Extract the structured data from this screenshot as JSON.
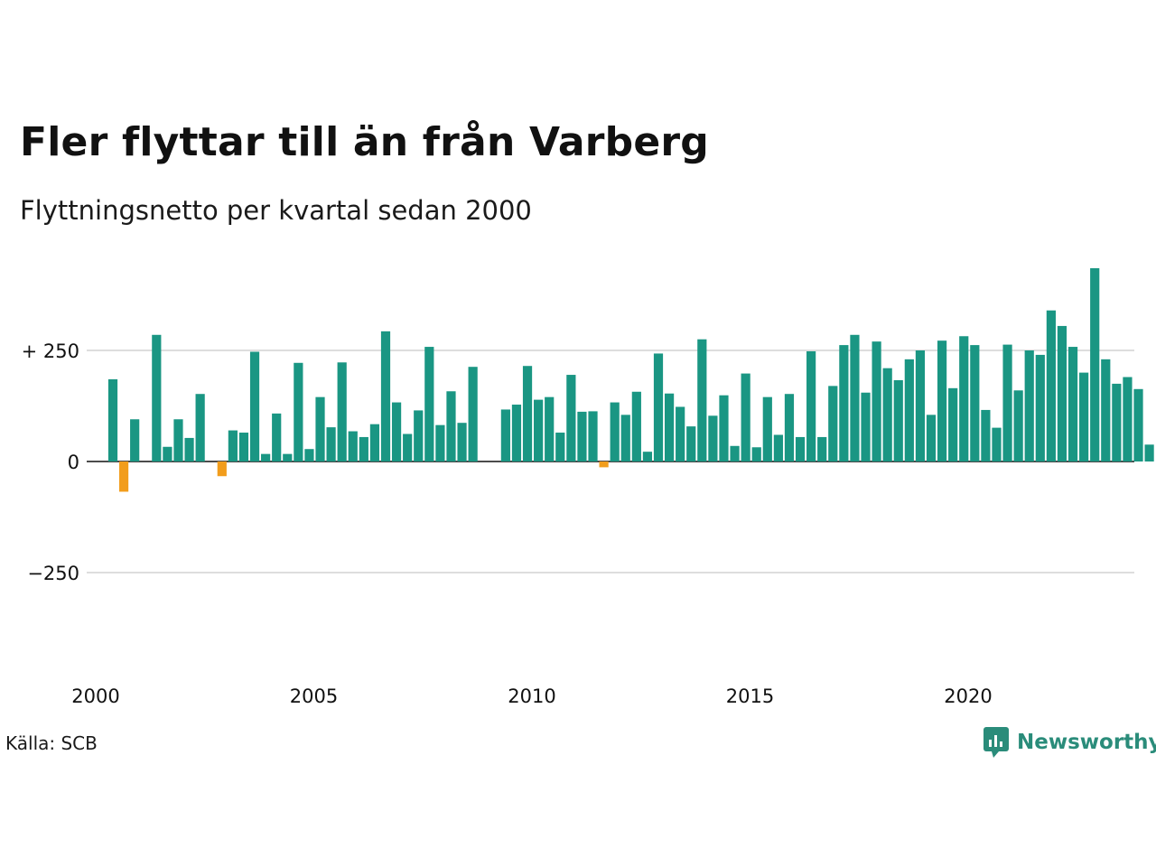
{
  "title": "Fler flyttar till än från Varberg",
  "subtitle": "Flyttningsnetto per kvartal sedan 2000",
  "source": "Källa: SCB",
  "brand": {
    "name": "Newsworthy",
    "color": "#2a8c7a",
    "icon": "newsworthy-logo-icon"
  },
  "colors": {
    "positive": "#1a9683",
    "negative": "#f29d1c",
    "grid": "#dddddd",
    "zero": "#111111"
  },
  "chart_data": {
    "type": "bar",
    "title": "",
    "xlabel": "",
    "ylabel": "",
    "ylim": [
      -450,
      450
    ],
    "y_ticks": [
      {
        "value": 250,
        "label": "+ 250"
      },
      {
        "value": 0,
        "label": "0"
      },
      {
        "value": -250,
        "label": "−250"
      }
    ],
    "x_ticks": [
      "2000",
      "2005",
      "2010",
      "2015",
      "2020"
    ],
    "grid": true,
    "legend": "none",
    "categories": [
      "2000 K1",
      "2000 K2",
      "2000 K3",
      "2000 K4",
      "2001 K1",
      "2001 K2",
      "2001 K3",
      "2001 K4",
      "2002 K1",
      "2002 K2",
      "2002 K3",
      "2002 K4",
      "2003 K1",
      "2003 K2",
      "2003 K3",
      "2003 K4",
      "2004 K1",
      "2004 K2",
      "2004 K3",
      "2004 K4",
      "2005 K1",
      "2005 K2",
      "2005 K3",
      "2005 K4",
      "2006 K1",
      "2006 K2",
      "2006 K3",
      "2006 K4",
      "2007 K1",
      "2007 K2",
      "2007 K3",
      "2007 K4",
      "2008 K1",
      "2008 K2",
      "2008 K3",
      "2008 K4",
      "2009 K1",
      "2009 K2",
      "2009 K3",
      "2009 K4",
      "2010 K1",
      "2010 K2",
      "2010 K3",
      "2010 K4",
      "2011 K1",
      "2011 K2",
      "2011 K3",
      "2011 K4",
      "2012 K1",
      "2012 K2",
      "2012 K3",
      "2012 K4",
      "2013 K1",
      "2013 K2",
      "2013 K3",
      "2013 K4",
      "2014 K1",
      "2014 K2",
      "2014 K3",
      "2014 K4",
      "2015 K1",
      "2015 K2",
      "2015 K3",
      "2015 K4",
      "2016 K1",
      "2016 K2",
      "2016 K3",
      "2016 K4",
      "2017 K1",
      "2017 K2",
      "2017 K3",
      "2017 K4",
      "2018 K1",
      "2018 K2",
      "2018 K3",
      "2018 K4",
      "2019 K1",
      "2019 K2",
      "2019 K3",
      "2019 K4",
      "2020 K1",
      "2020 K2",
      "2020 K3",
      "2020 K4",
      "2021 K1",
      "2021 K2",
      "2021 K3",
      "2021 K4",
      "2022 K1",
      "2022 K2",
      "2022 K3",
      "2022 K4",
      "2023 K1",
      "2023 K2",
      "2023 K3",
      "2023 K4"
    ],
    "values": [
      185,
      -68,
      95,
      0,
      285,
      33,
      95,
      53,
      152,
      0,
      -33,
      70,
      65,
      247,
      17,
      108,
      17,
      222,
      28,
      145,
      77,
      223,
      68,
      55,
      84,
      293,
      133,
      62,
      115,
      258,
      82,
      158,
      87,
      213,
      0,
      0,
      117,
      128,
      215,
      139,
      145,
      65,
      195,
      112,
      113,
      -13,
      133,
      105,
      157,
      22,
      243,
      153,
      123,
      79,
      275,
      103,
      149,
      35,
      198,
      32,
      145,
      60,
      152,
      55,
      248,
      55,
      170,
      262,
      285,
      155,
      270,
      210,
      183,
      230,
      250,
      105,
      272,
      165,
      282,
      262,
      116,
      76,
      263,
      160,
      250,
      240,
      340,
      305,
      258,
      200,
      435,
      230,
      175,
      190,
      163,
      38
    ]
  }
}
